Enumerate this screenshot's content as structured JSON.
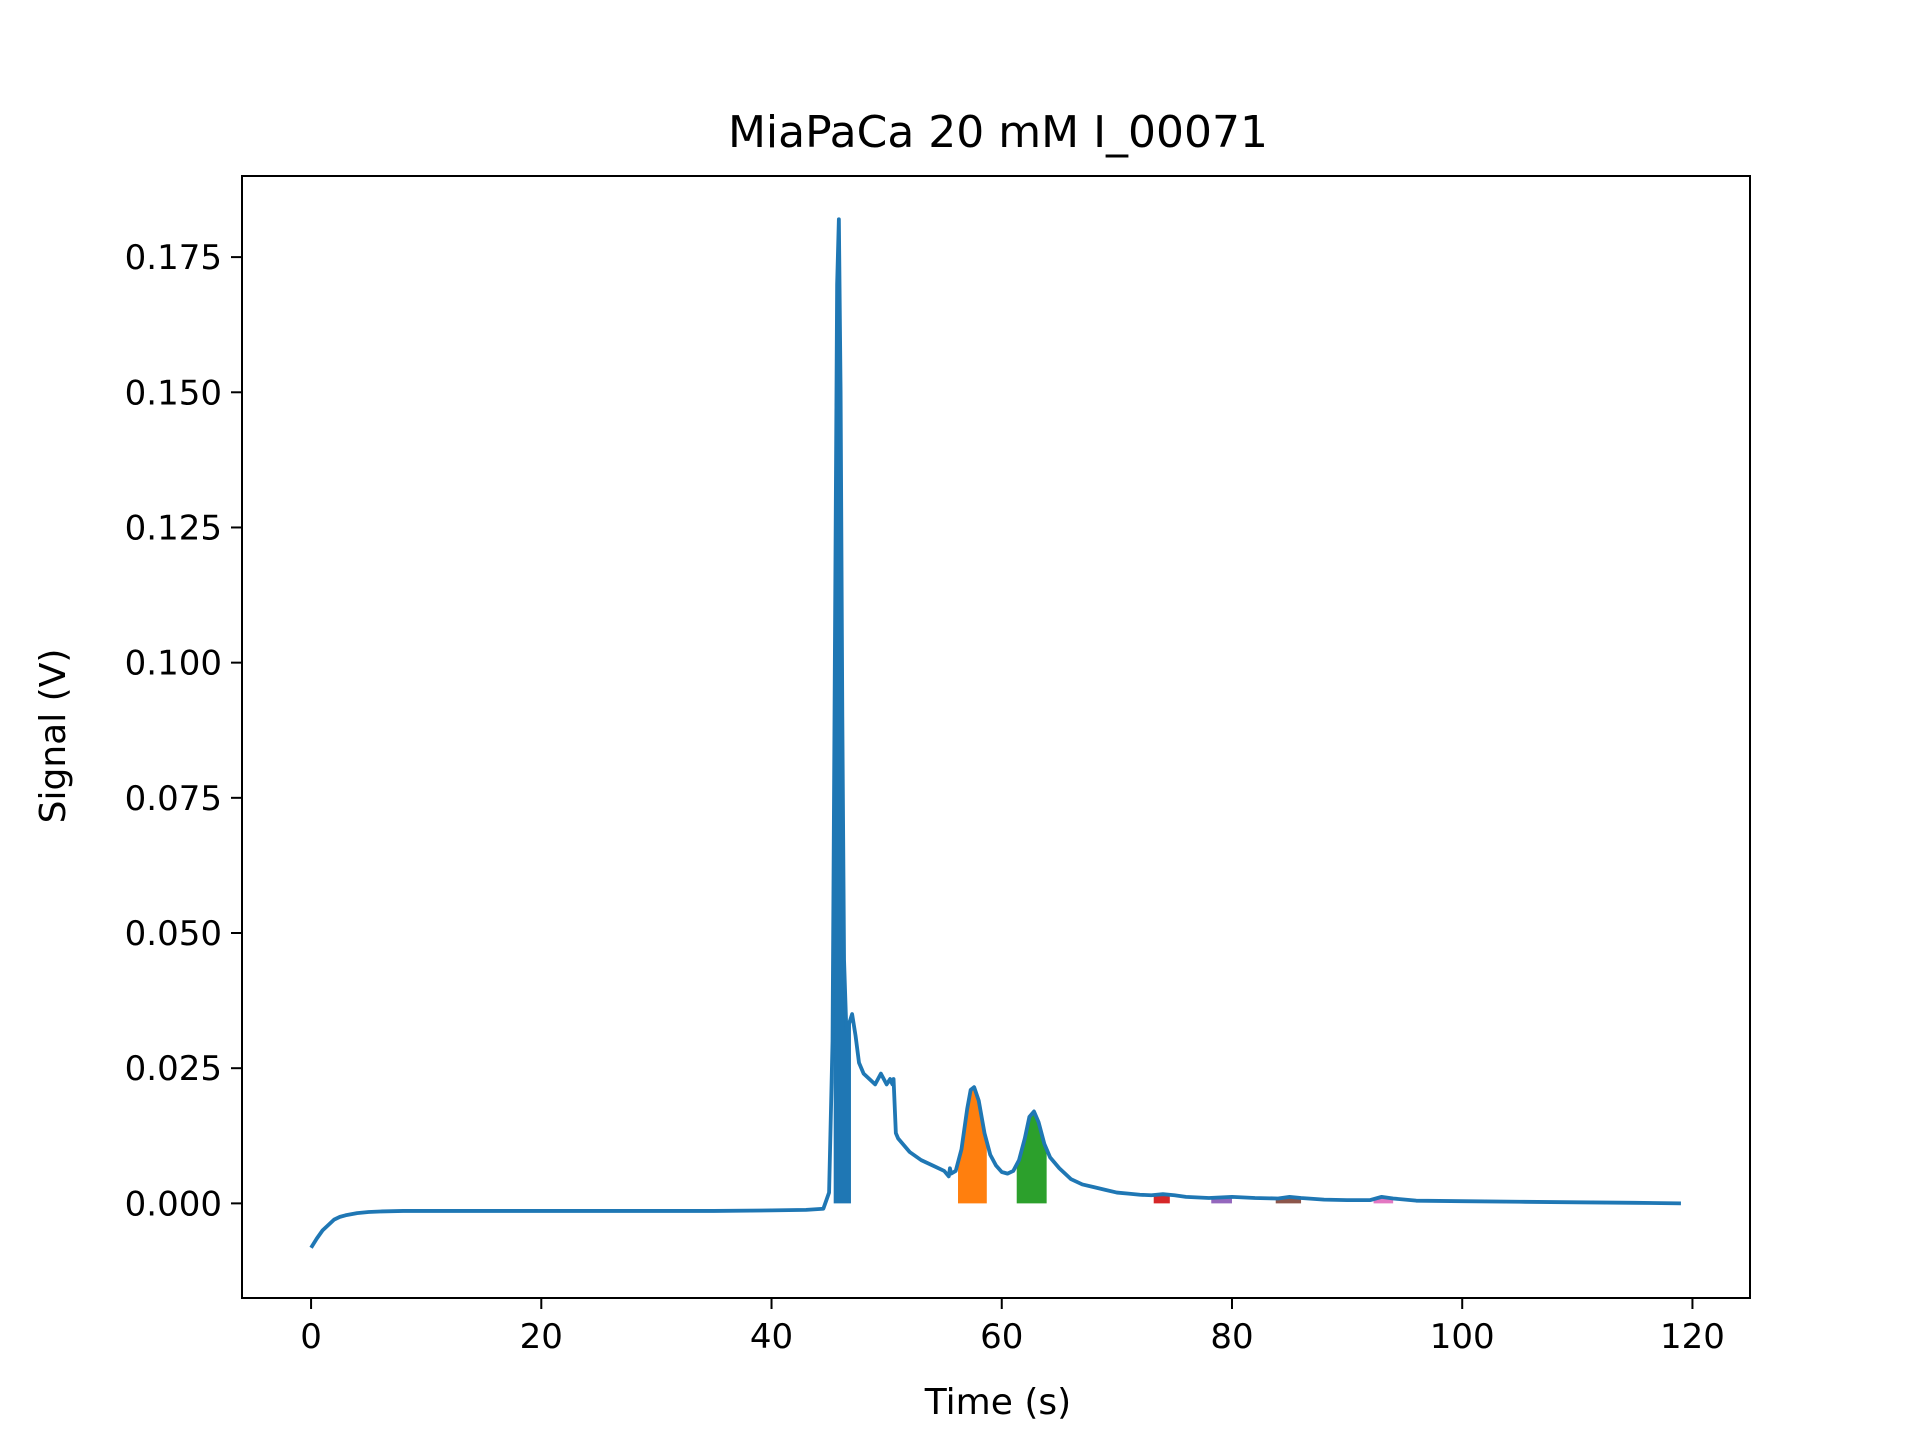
{
  "chart_data": {
    "type": "line",
    "title": "MiaPaCa 20 mM I_00071",
    "xlabel": "Time (s)",
    "ylabel": "Signal (V)",
    "xlim": [
      -6,
      125
    ],
    "ylim": [
      -0.0175,
      0.19
    ],
    "xticks": [
      0,
      20,
      40,
      60,
      80,
      100,
      120
    ],
    "xtick_labels": [
      "0",
      "20",
      "40",
      "60",
      "80",
      "100",
      "120"
    ],
    "yticks": [
      0.0,
      0.025,
      0.05,
      0.075,
      0.1,
      0.125,
      0.15,
      0.175
    ],
    "ytick_labels": [
      "0.000",
      "0.025",
      "0.050",
      "0.075",
      "0.100",
      "0.125",
      "0.150",
      "0.175"
    ],
    "grid": false,
    "series": [
      {
        "color": "#1f77b4",
        "x": [
          0,
          0.5,
          1,
          1.5,
          2,
          2.5,
          3,
          4,
          5,
          6,
          8,
          10,
          15,
          20,
          25,
          30,
          35,
          40,
          43,
          44.5,
          45,
          45.3,
          45.5,
          45.7,
          45.85,
          46.0,
          46.15,
          46.3,
          46.5,
          46.7,
          47.0,
          47.3,
          47.6,
          48.0,
          48.5,
          49.0,
          49.5,
          50.0,
          50.3,
          50.5,
          50.6,
          50.8,
          51.0,
          52,
          53,
          54,
          55,
          55.4,
          55.5,
          55.6,
          56,
          56.5,
          57,
          57.3,
          57.6,
          58,
          58.5,
          59,
          59.5,
          60,
          60.5,
          61,
          61.5,
          62,
          62.4,
          62.8,
          63.2,
          63.7,
          64.2,
          65,
          66,
          67,
          68,
          69,
          70,
          71,
          72,
          73,
          74,
          75,
          76,
          78,
          80,
          82,
          84,
          85,
          86,
          88,
          90,
          92,
          93,
          94,
          96,
          100,
          105,
          110,
          115,
          119
        ],
        "y": [
          -0.0082,
          -0.0065,
          -0.005,
          -0.004,
          -0.003,
          -0.0025,
          -0.0022,
          -0.0018,
          -0.0016,
          -0.0015,
          -0.0014,
          -0.0014,
          -0.0014,
          -0.0014,
          -0.0014,
          -0.0014,
          -0.0014,
          -0.0013,
          -0.0012,
          -0.001,
          0.002,
          0.03,
          0.1,
          0.17,
          0.182,
          0.15,
          0.09,
          0.045,
          0.032,
          0.033,
          0.035,
          0.031,
          0.026,
          0.024,
          0.023,
          0.022,
          0.024,
          0.022,
          0.023,
          0.022,
          0.023,
          0.013,
          0.012,
          0.0095,
          0.008,
          0.007,
          0.006,
          0.005,
          0.0065,
          0.0055,
          0.006,
          0.01,
          0.0175,
          0.021,
          0.0215,
          0.019,
          0.013,
          0.009,
          0.007,
          0.0058,
          0.0055,
          0.006,
          0.008,
          0.012,
          0.016,
          0.017,
          0.015,
          0.011,
          0.0085,
          0.0065,
          0.0045,
          0.0035,
          0.003,
          0.0025,
          0.002,
          0.0018,
          0.0016,
          0.0015,
          0.0017,
          0.0015,
          0.0012,
          0.001,
          0.0012,
          0.001,
          0.0009,
          0.0012,
          0.001,
          0.0007,
          0.0006,
          0.0006,
          0.0012,
          0.0009,
          0.0005,
          0.0004,
          0.0003,
          0.0002,
          0.0001,
          0.0
        ]
      }
    ],
    "fill_regions": [
      {
        "x_start": 45.4,
        "x_end": 46.9,
        "color": "#1f77b4"
      },
      {
        "x_start": 56.2,
        "x_end": 58.7,
        "color": "#ff7f0e"
      },
      {
        "x_start": 61.3,
        "x_end": 63.9,
        "color": "#2ca02c"
      },
      {
        "x_start": 73.2,
        "x_end": 74.6,
        "color": "#d62728"
      },
      {
        "x_start": 78.2,
        "x_end": 80.0,
        "color": "#9467bd"
      },
      {
        "x_start": 83.8,
        "x_end": 86.0,
        "color": "#8c564b"
      },
      {
        "x_start": 92.3,
        "x_end": 94.0,
        "color": "#e377c2"
      }
    ]
  }
}
